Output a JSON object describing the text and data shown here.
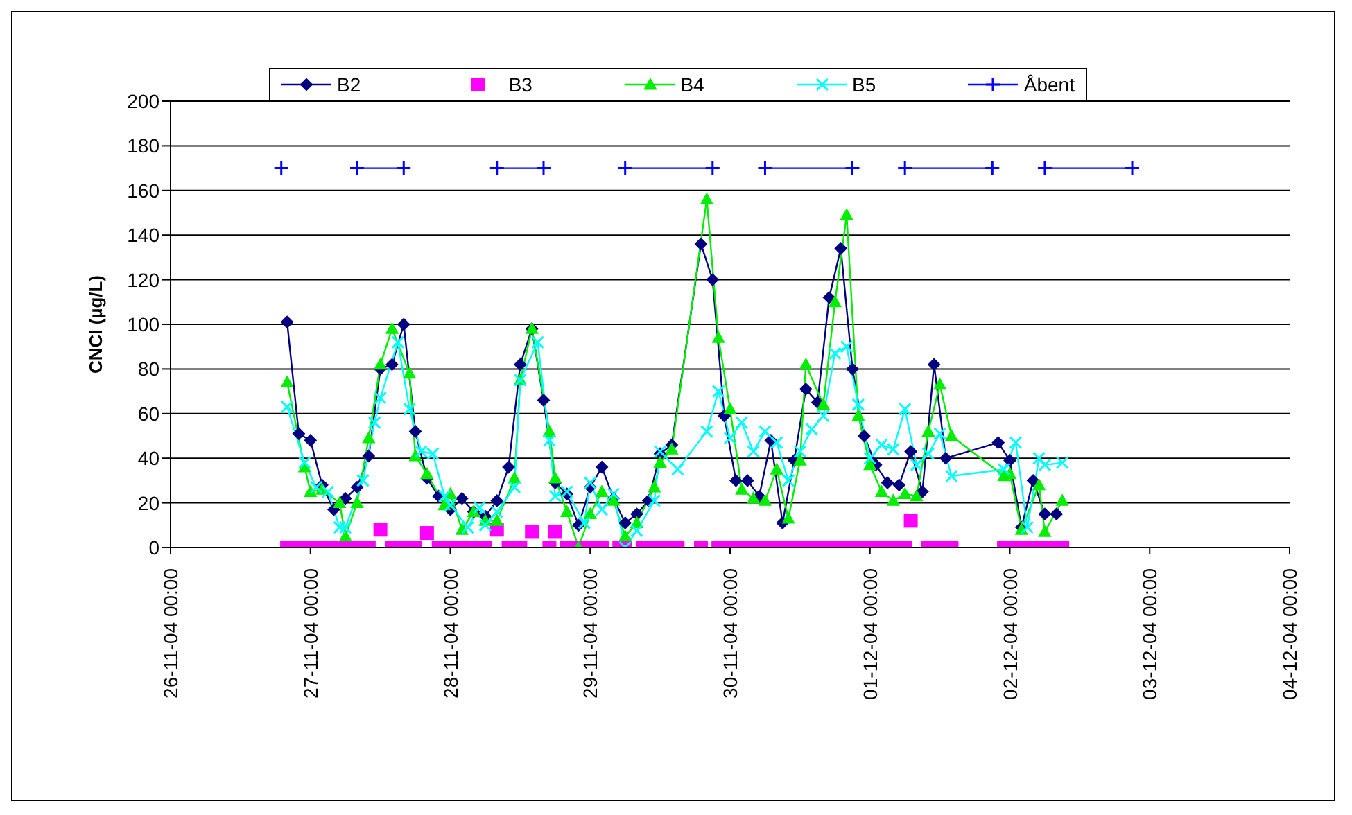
{
  "chart_data": {
    "type": "line",
    "ylabel": "CNCl (µg/L)",
    "legend": "top",
    "grid": "y",
    "xlim": [
      "--11-26",
      "--12-04"
    ],
    "xticks": [
      {
        "value": "--11-26",
        "label": "26-11-04 00:00"
      },
      {
        "value": "--11-27",
        "label": "27-11-04 00:00"
      },
      {
        "value": "--11-28",
        "label": "28-11-04 00:00"
      },
      {
        "value": "--11-29",
        "label": "29-11-04 00:00"
      },
      {
        "value": "--11-30",
        "label": "30-11-04 00:00"
      },
      {
        "value": "--12-01",
        "label": "01-12-04 00:00"
      },
      {
        "value": "--12-02",
        "label": "02-12-04 00:00"
      },
      {
        "value": "--12-03",
        "label": "03-12-04 00:00"
      },
      {
        "value": "--12-04",
        "label": "04-12-04 00:00"
      }
    ],
    "ylim": [
      0,
      200
    ],
    "yticks": [
      0,
      20,
      40,
      60,
      80,
      100,
      120,
      140,
      160,
      180,
      200
    ],
    "series": [
      {
        "name": "B2",
        "color": "#000080",
        "marker": "diamond",
        "x": [
          "--11-26T20:00",
          "--11-26T22:00",
          "--11-27T00:00",
          "--11-27T02:00",
          "--11-27T04:00",
          "--11-27T06:00",
          "--11-27T08:00",
          "--11-27T10:00",
          "--11-27T12:00",
          "--11-27T14:00",
          "--11-27T16:00",
          "--11-27T18:00",
          "--11-27T20:00",
          "--11-27T22:00",
          "--11-28T00:00",
          "--11-28T02:00",
          "--11-28T04:00",
          "--11-28T06:00",
          "--11-28T08:00",
          "--11-28T10:00",
          "--11-28T12:00",
          "--11-28T14:00",
          "--11-28T16:00",
          "--11-28T18:00",
          "--11-28T20:00",
          "--11-28T22:00",
          "--11-29T00:00",
          "--11-29T02:00",
          "--11-29T04:00",
          "--11-29T06:00",
          "--11-29T08:00",
          "--11-29T10:00",
          "--11-29T12:00",
          "--11-29T14:00",
          "--11-29T19:00",
          "--11-29T21:00",
          "--11-29T23:00",
          "--11-30T01:00",
          "--11-30T03:00",
          "--11-30T05:00",
          "--11-30T07:00",
          "--11-30T09:00",
          "--11-30T11:00",
          "--11-30T13:00",
          "--11-30T15:00",
          "--11-30T17:00",
          "--11-30T19:00",
          "--11-30T21:00",
          "--11-30T23:00",
          "--12-01T01:00",
          "--12-01T03:00",
          "--12-01T05:00",
          "--12-01T07:00",
          "--12-01T09:00",
          "--12-01T11:00",
          "--12-01T13:00",
          "--12-01T22:00",
          "--12-02T00:00",
          "--12-02T02:00",
          "--12-02T04:00",
          "--12-02T06:00",
          "--12-02T08:00"
        ],
        "values": [
          101,
          51,
          48,
          28,
          17,
          22,
          27,
          41,
          80,
          82,
          100,
          52,
          31,
          23,
          17,
          22,
          16,
          14,
          21,
          36,
          82,
          98,
          66,
          29,
          24,
          10,
          27,
          36,
          22,
          11,
          15,
          21,
          42,
          46,
          136,
          120,
          59,
          30,
          30,
          23,
          48,
          11,
          39,
          71,
          65,
          112,
          134,
          80,
          50,
          37,
          29,
          28,
          43,
          25,
          82,
          40,
          47,
          39,
          9,
          30,
          15,
          15
        ]
      },
      {
        "name": "B3",
        "type": "scatter",
        "color": "#ff00ff",
        "marker": "square",
        "x": [
          "--11-26T20:00",
          "--11-26T22:00",
          "--11-27T00:00",
          "--11-27T02:00",
          "--11-27T04:00",
          "--11-27T06:00",
          "--11-27T08:00",
          "--11-27T10:00",
          "--11-27T12:00",
          "--11-27T14:00",
          "--11-27T16:00",
          "--11-27T18:00",
          "--11-27T20:00",
          "--11-27T22:00",
          "--11-28T00:00",
          "--11-28T02:00",
          "--11-28T04:00",
          "--11-28T06:00",
          "--11-28T08:00",
          "--11-28T10:00",
          "--11-28T12:00",
          "--11-28T14:00",
          "--11-28T17:00",
          "--11-28T18:00",
          "--11-28T20:00",
          "--11-28T22:00",
          "--11-29T00:00",
          "--11-29T02:00",
          "--11-29T05:00",
          "--11-29T06:00",
          "--11-29T09:00",
          "--11-29T11:00",
          "--11-29T13:00",
          "--11-29T15:00",
          "--11-29T19:00",
          "--11-29T22:00",
          "--11-30T00:00",
          "--11-30T02:00",
          "--11-30T04:00",
          "--11-30T06:00",
          "--11-30T08:00",
          "--11-30T10:00",
          "--11-30T12:00",
          "--11-30T14:00",
          "--11-30T16:00",
          "--11-30T18:00",
          "--11-30T20:00",
          "--11-30T22:00",
          "--12-01T00:00",
          "--12-01T02:00",
          "--12-01T04:00",
          "--12-01T06:00",
          "--12-01T07:00",
          "--12-01T10:00",
          "--12-01T12:00",
          "--12-01T14:00",
          "--12-01T23:00",
          "--12-02T01:00",
          "--12-02T03:00",
          "--12-02T05:00",
          "--12-02T07:00",
          "--12-02T09:00"
        ],
        "values": [
          0,
          0,
          0,
          0,
          0,
          0,
          0,
          0,
          8,
          0,
          0,
          0,
          6.5,
          0,
          0,
          0,
          0,
          0,
          8,
          0,
          0,
          7,
          0,
          7,
          0,
          0,
          0,
          0,
          0,
          0,
          0,
          0,
          0,
          0,
          0,
          0,
          0,
          0,
          0,
          0,
          0,
          0,
          0,
          0,
          0,
          0,
          0,
          0,
          0,
          0,
          0,
          0,
          12,
          0,
          0,
          0,
          0,
          0,
          0,
          0,
          0,
          0
        ]
      },
      {
        "name": "B4",
        "color": "#00ee00",
        "marker": "triangle",
        "x": [
          "--11-26T20:00",
          "--11-26T23:00",
          "--11-27T00:00",
          "--11-27T02:00",
          "--11-27T05:00",
          "--11-27T06:00",
          "--11-27T08:00",
          "--11-27T10:00",
          "--11-27T12:00",
          "--11-27T14:00",
          "--11-27T17:00",
          "--11-27T18:00",
          "--11-27T20:00",
          "--11-27T23:00",
          "--11-28T00:00",
          "--11-28T02:00",
          "--11-28T04:00",
          "--11-28T06:00",
          "--11-28T08:00",
          "--11-28T11:00",
          "--11-28T12:00",
          "--11-28T14:00",
          "--11-28T17:00",
          "--11-28T18:00",
          "--11-28T20:00",
          "--11-28T22:00",
          "--11-29T00:00",
          "--11-29T02:00",
          "--11-29T04:00",
          "--11-29T06:00",
          "--11-29T08:00",
          "--11-29T11:00",
          "--11-29T12:00",
          "--11-29T14:00",
          "--11-29T20:00",
          "--11-29T22:00",
          "--11-30T00:00",
          "--11-30T02:00",
          "--11-30T04:00",
          "--11-30T06:00",
          "--11-30T08:00",
          "--11-30T10:00",
          "--11-30T12:00",
          "--11-30T13:00",
          "--11-30T16:00",
          "--11-30T18:00",
          "--11-30T20:00",
          "--11-30T22:00",
          "--12-01T00:00",
          "--12-01T02:00",
          "--12-01T04:00",
          "--12-01T06:00",
          "--12-01T08:00",
          "--12-01T10:00",
          "--12-01T12:00",
          "--12-01T14:00",
          "--12-01T23:00",
          "--12-02T00:00",
          "--12-02T02:00",
          "--12-02T05:00",
          "--12-02T06:00",
          "--12-02T09:00"
        ],
        "values": [
          74,
          36,
          25,
          26,
          20,
          5,
          20,
          49,
          82,
          98,
          78,
          41,
          33,
          19,
          24,
          8,
          16,
          12,
          12,
          31,
          75,
          98,
          52,
          31,
          16,
          0,
          15,
          25,
          21,
          5,
          11,
          27,
          38,
          44,
          156,
          94,
          62,
          26,
          22,
          21,
          35,
          13,
          39,
          82,
          64,
          110,
          149,
          59,
          37,
          25,
          21,
          24,
          23,
          52,
          73,
          50,
          32,
          33,
          8,
          28,
          7,
          21
        ]
      },
      {
        "name": "B5",
        "color": "#00ffff",
        "marker": "cross",
        "x": [
          "--11-26T20:00",
          "--11-26T23:00",
          "--11-27T01:00",
          "--11-27T03:00",
          "--11-27T05:00",
          "--11-27T06:00",
          "--11-27T09:00",
          "--11-27T11:00",
          "--11-27T12:00",
          "--11-27T15:00",
          "--11-27T17:00",
          "--11-27T19:00",
          "--11-27T21:00",
          "--11-27T23:00",
          "--11-28T00:00",
          "--11-28T03:00",
          "--11-28T05:00",
          "--11-28T06:00",
          "--11-28T08:00",
          "--11-28T11:00",
          "--11-28T12:00",
          "--11-28T15:00",
          "--11-28T17:00",
          "--11-28T18:00",
          "--11-28T20:00",
          "--11-28T23:00",
          "--11-29T00:00",
          "--11-29T02:00",
          "--11-29T04:00",
          "--11-29T06:00",
          "--11-29T08:00",
          "--11-29T11:00",
          "--11-29T12:00",
          "--11-29T15:00",
          "--11-29T20:00",
          "--11-29T22:00",
          "--11-30T00:00",
          "--11-30T02:00",
          "--11-30T04:00",
          "--11-30T06:00",
          "--11-30T08:00",
          "--11-30T10:00",
          "--11-30T12:00",
          "--11-30T14:00",
          "--11-30T16:00",
          "--11-30T18:00",
          "--11-30T20:00",
          "--11-30T22:00",
          "--12-01T00:00",
          "--12-01T02:00",
          "--12-01T04:00",
          "--12-01T06:00",
          "--12-01T08:00",
          "--12-01T10:00",
          "--12-01T12:00",
          "--12-01T14:00",
          "--12-01T23:00",
          "--12-02T01:00",
          "--12-02T03:00",
          "--12-02T05:00",
          "--12-02T06:00",
          "--12-02T09:00"
        ],
        "values": [
          63,
          38,
          27,
          25,
          9,
          9,
          30,
          56,
          67,
          92,
          62,
          43,
          42,
          23,
          19,
          9,
          18,
          10,
          16,
          27,
          75,
          92,
          48,
          23,
          25,
          11,
          29,
          17,
          24,
          0,
          7.5,
          21,
          43,
          35,
          52,
          70,
          49,
          56,
          43,
          52,
          47,
          30,
          43,
          53,
          59,
          87,
          90,
          64,
          40,
          46,
          44,
          62,
          37,
          42,
          51,
          32,
          35,
          47,
          9,
          40,
          37,
          38
        ]
      },
      {
        "name": "Åbent",
        "color": "#0000ff",
        "marker": "plus",
        "x": [
          "--11-26T19:00",
          "--11-27T00:00",
          "--11-27T08:00",
          "--11-27T16:00",
          "--11-28T00:00",
          "--11-28T08:00",
          "--11-28T16:00",
          "--11-29T00:00",
          "--11-29T06:00",
          "--11-29T21:00",
          "--11-30T00:00",
          "--11-30T06:00",
          "--11-30T21:00",
          "--12-01T00:00",
          "--12-01T06:00",
          "--12-01T21:00",
          "--12-02T00:00",
          "--12-02T06:00",
          "--12-02T21:00"
        ],
        "values": [
          170,
          null,
          170,
          170,
          null,
          170,
          170,
          null,
          170,
          170,
          null,
          170,
          170,
          null,
          170,
          170,
          null,
          170,
          170
        ]
      }
    ]
  }
}
